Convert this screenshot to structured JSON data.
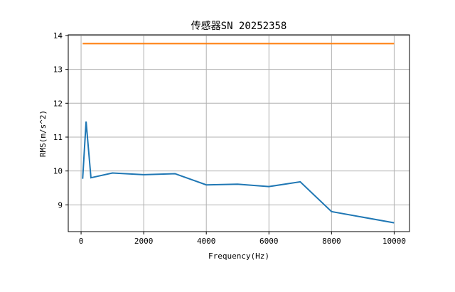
{
  "chart_data": {
    "type": "line",
    "title": "传感器SN 20252358",
    "xlabel": "Frequency(Hz)",
    "ylabel": "RMS(m/s^2)",
    "xlim": [
      -410,
      10490
    ],
    "ylim": [
      8.21,
      14.02
    ],
    "xticks": [
      0,
      2000,
      4000,
      6000,
      8000,
      10000
    ],
    "yticks": [
      9,
      10,
      11,
      12,
      13,
      14
    ],
    "grid": true,
    "series": [
      {
        "color": "#1f77b4",
        "x": [
          50,
          160,
          315,
          1000,
          2000,
          3000,
          4000,
          5000,
          6000,
          7000,
          8000,
          10000
        ],
        "y": [
          9.77,
          11.46,
          9.8,
          9.94,
          9.89,
          9.92,
          9.59,
          9.61,
          9.54,
          9.68,
          8.8,
          8.47
        ]
      },
      {
        "color": "#ff7f0e",
        "x": [
          50,
          10000
        ],
        "y": [
          13.76,
          13.76
        ]
      }
    ]
  }
}
